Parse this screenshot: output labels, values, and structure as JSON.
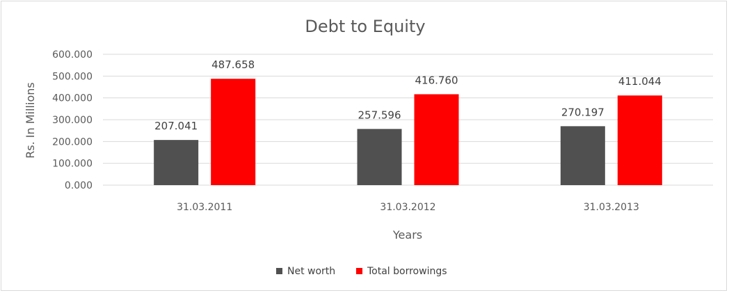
{
  "chart_data": {
    "type": "bar",
    "title": "Debt to Equity",
    "xlabel": "Years",
    "ylabel": "Rs. In Millions",
    "categories": [
      "31.03.2011",
      "31.03.2012",
      "31.03.2013"
    ],
    "series": [
      {
        "name": "Net worth",
        "values": [
          207.041,
          257.596,
          270.197
        ],
        "labels": [
          "207.041",
          "257.596",
          "270.197"
        ],
        "color": "#505050"
      },
      {
        "name": "Total borrowings",
        "values": [
          487.658,
          416.76,
          411.044
        ],
        "labels": [
          "487.658",
          "416.760",
          "411.044"
        ],
        "color": "#ff0000"
      }
    ],
    "yticks": [
      "0.000",
      "100.000",
      "200.000",
      "300.000",
      "400.000",
      "500.000",
      "600.000"
    ],
    "ylim": [
      0,
      600
    ],
    "grid": true,
    "legend_position": "bottom"
  }
}
